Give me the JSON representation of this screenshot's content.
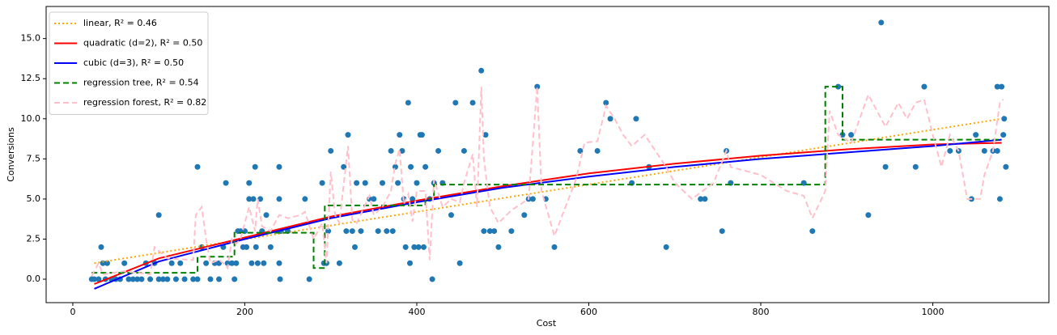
{
  "chart_data": {
    "type": "scatter",
    "x_label": "Cost",
    "y_label": "Conversions",
    "xlim": [
      -31,
      1135
    ],
    "ylim": [
      -1.46,
      17.0
    ],
    "xticks": [
      0,
      200,
      400,
      600,
      800,
      1000
    ],
    "yticks": [
      {
        "value": 0,
        "label": "0.0"
      },
      {
        "value": 2.5,
        "label": "2.5"
      },
      {
        "value": 5,
        "label": "5.0"
      },
      {
        "value": 7.5,
        "label": "7.5"
      },
      {
        "value": 10,
        "label": "10.0"
      },
      {
        "value": 12.5,
        "label": "12.5"
      },
      {
        "value": 15,
        "label": "15.0"
      }
    ],
    "legend": "upper left",
    "scatter": {
      "color": "#1f77b4",
      "x": [
        22,
        25,
        30,
        33,
        35,
        38,
        40,
        45,
        50,
        55,
        60,
        65,
        70,
        75,
        80,
        85,
        90,
        95,
        100,
        100,
        105,
        110,
        115,
        120,
        125,
        130,
        140,
        145,
        145,
        150,
        155,
        160,
        165,
        170,
        170,
        175,
        178,
        180,
        185,
        188,
        190,
        192,
        195,
        198,
        200,
        202,
        205,
        205,
        208,
        210,
        212,
        213,
        215,
        218,
        220,
        222,
        225,
        230,
        240,
        240,
        240,
        241,
        242,
        250,
        270,
        275,
        290,
        292,
        295,
        297,
        300,
        310,
        315,
        318,
        320,
        325,
        328,
        330,
        335,
        340,
        345,
        350,
        355,
        360,
        365,
        370,
        372,
        375,
        378,
        380,
        383,
        385,
        387,
        390,
        392,
        393,
        395,
        397,
        400,
        402,
        404,
        406,
        408,
        410,
        415,
        418,
        420,
        425,
        430,
        440,
        445,
        450,
        455,
        465,
        475,
        478,
        480,
        485,
        490,
        495,
        510,
        525,
        530,
        535,
        540,
        550,
        560,
        590,
        610,
        620,
        625,
        650,
        655,
        670,
        690,
        730,
        735,
        755,
        760,
        765,
        850,
        860,
        890,
        895,
        905,
        925,
        940,
        945,
        980,
        990,
        1020,
        1030,
        1045,
        1050,
        1060,
        1070,
        1075,
        1078,
        1080,
        1082,
        1083,
        1085,
        1075
      ],
      "values": [
        0,
        0,
        0,
        2,
        1,
        0,
        1,
        0,
        0,
        0,
        1,
        0,
        0,
        0,
        0,
        1,
        0,
        1,
        0,
        4,
        0,
        0,
        1,
        0,
        1,
        0,
        0,
        0,
        7,
        2,
        1,
        0,
        1,
        1,
        0,
        2,
        6,
        1,
        1,
        0,
        1,
        3,
        3,
        2,
        3,
        2,
        6,
        5,
        1,
        5,
        7,
        2,
        1,
        5,
        3,
        1,
        4,
        2,
        1,
        5,
        7,
        0,
        3,
        3,
        5,
        0,
        6,
        1,
        1,
        3,
        8,
        1,
        7,
        3,
        9,
        3,
        2,
        6,
        3,
        6,
        5,
        5,
        3,
        6,
        3,
        8,
        3,
        7,
        6,
        9,
        8,
        5,
        2,
        11,
        1,
        7,
        5,
        2,
        6,
        2,
        9,
        9,
        2,
        7,
        5,
        0,
        6,
        8,
        6,
        4,
        11,
        1,
        8,
        11,
        13,
        3,
        9,
        3,
        3,
        2,
        3,
        4,
        5,
        5,
        12,
        5,
        2,
        8,
        8,
        11,
        10,
        6,
        10,
        7,
        2,
        5,
        5,
        3,
        8,
        6,
        6,
        3,
        12,
        9,
        9,
        4,
        16,
        7,
        7,
        12,
        8,
        8,
        5,
        9,
        8,
        8,
        8,
        5,
        12,
        9,
        10,
        7,
        12
      ]
    },
    "series": [
      {
        "name": "linear, R² = 0.46",
        "color": "#ffa500",
        "style": "dotted",
        "x": [
          25,
          1080
        ],
        "values": [
          1.0,
          10.0
        ]
      },
      {
        "name": "quadratic (d=2), R² = 0.50",
        "color": "#ff0000",
        "style": "solid",
        "x": [
          25,
          100,
          200,
          300,
          400,
          500,
          600,
          700,
          800,
          900,
          1000,
          1080
        ],
        "values": [
          -0.3,
          1.3,
          2.6,
          3.9,
          4.9,
          5.8,
          6.6,
          7.2,
          7.7,
          8.1,
          8.4,
          8.5
        ]
      },
      {
        "name": "cubic (d=3), R² = 0.50",
        "color": "#0000ff",
        "style": "solid",
        "x": [
          25,
          100,
          200,
          300,
          400,
          500,
          600,
          700,
          800,
          900,
          1000,
          1080
        ],
        "values": [
          -0.6,
          1.1,
          2.5,
          3.8,
          4.8,
          5.7,
          6.4,
          7.0,
          7.5,
          7.9,
          8.3,
          8.7
        ]
      },
      {
        "name": "regression tree, R² = 0.54",
        "color": "#008000",
        "style": "dashed",
        "x": [
          22,
          145,
          145,
          188,
          188,
          280,
          280,
          293,
          293,
          410,
          410,
          420,
          420,
          875,
          875,
          895,
          895,
          1080
        ],
        "values": [
          0.4,
          0.4,
          1.4,
          1.4,
          2.9,
          2.9,
          0.7,
          0.7,
          4.6,
          4.6,
          5.0,
          5.0,
          5.9,
          5.9,
          12.0,
          12.0,
          8.7,
          8.7
        ]
      },
      {
        "name": "regression forest, R² = 0.82",
        "color": "#ffc0cb",
        "style": "dashed",
        "x": [
          22,
          30,
          35,
          60,
          90,
          95,
          110,
          140,
          143,
          150,
          155,
          160,
          170,
          175,
          180,
          185,
          190,
          195,
          205,
          212,
          215,
          220,
          230,
          240,
          250,
          265,
          270,
          280,
          290,
          295,
          300,
          305,
          310,
          320,
          325,
          330,
          345,
          350,
          360,
          370,
          375,
          380,
          385,
          390,
          395,
          400,
          410,
          415,
          420,
          430,
          440,
          450,
          455,
          465,
          470,
          475,
          478,
          485,
          495,
          510,
          530,
          540,
          545,
          560,
          585,
          595,
          610,
          620,
          630,
          640,
          650,
          665,
          690,
          700,
          720,
          745,
          760,
          765,
          800,
          830,
          850,
          860,
          875,
          880,
          890,
          905,
          925,
          945,
          960,
          970,
          980,
          990,
          1000,
          1010,
          1020,
          1030,
          1040,
          1055,
          1060,
          1070,
          1078,
          1082
        ],
        "values": [
          0.2,
          1.0,
          0.3,
          0.5,
          0.3,
          2,
          1.3,
          1.2,
          4,
          4.5,
          2.5,
          1.0,
          1.2,
          1.0,
          0.7,
          2.5,
          2.2,
          2.5,
          4.5,
          3,
          5,
          3.3,
          3,
          4,
          3.8,
          4,
          4.2,
          2.5,
          3.5,
          1,
          6.7,
          4,
          3.5,
          8.3,
          3.7,
          3.5,
          5.2,
          4,
          4.5,
          5.5,
          7.2,
          8.1,
          4.7,
          5.3,
          3.6,
          5.5,
          5.5,
          1.2,
          6.2,
          4.5,
          5,
          4.8,
          6,
          7.8,
          4.5,
          12,
          7.5,
          4.5,
          3.5,
          4.3,
          5,
          12,
          5.5,
          2.7,
          6.2,
          8.5,
          8.6,
          10.8,
          10,
          9,
          8.3,
          9,
          7,
          6,
          5,
          6,
          8,
          7,
          6.5,
          5.5,
          5.2,
          3.8,
          5.5,
          10.5,
          9,
          8.5,
          11.5,
          9.5,
          11,
          10,
          11,
          11.2,
          9,
          7,
          9,
          8,
          5,
          5,
          6.5,
          8,
          11,
          11.2
        ]
      }
    ]
  }
}
